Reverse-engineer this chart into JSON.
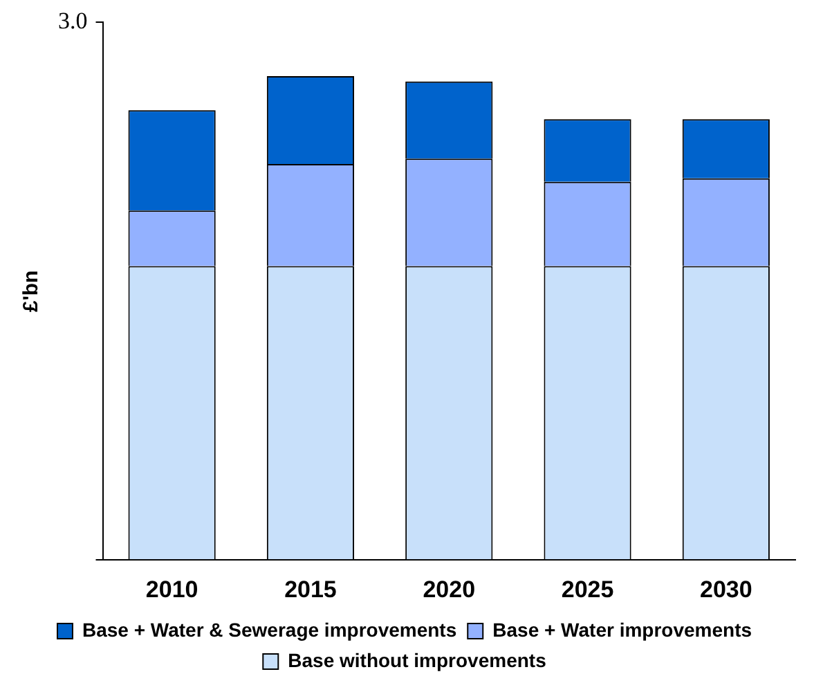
{
  "chart_data": {
    "type": "bar",
    "stacked": true,
    "ylabel": "£'bn",
    "categories": [
      "2010",
      "2015",
      "2020",
      "2025",
      "2030"
    ],
    "series": [
      {
        "name": "Base without improvements",
        "color": "#c8e0fa",
        "values": [
          1.64,
          1.64,
          1.64,
          1.64,
          1.64
        ]
      },
      {
        "name": "Base + Water improvements",
        "color": "#93b1ff",
        "values": [
          0.31,
          0.57,
          0.6,
          0.47,
          0.49
        ]
      },
      {
        "name": "Base + Water & Sewerage improvements",
        "color": "#0063cc",
        "values": [
          0.56,
          0.49,
          0.43,
          0.35,
          0.33
        ]
      }
    ],
    "ylim": [
      0,
      3
    ],
    "yticks": [
      {
        "value": 0,
        "label": null
      },
      {
        "value": 3,
        "label": "3.0"
      }
    ],
    "grid": false,
    "legend": "bottom"
  }
}
